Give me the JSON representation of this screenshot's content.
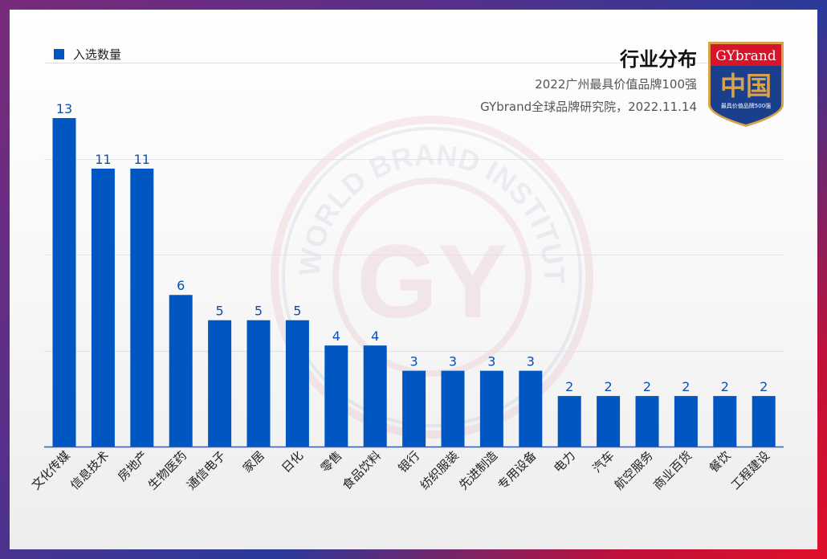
{
  "chart_data": {
    "type": "bar",
    "title": "行业分布",
    "subtitle": [
      "2022广州最具价值品牌100强",
      "GYbrand全球品牌研究院，2022.11.14"
    ],
    "legend": {
      "position": "top-left",
      "entries": [
        "入选数量"
      ]
    },
    "categories": [
      "文化传媒",
      "信息技术",
      "房地产",
      "生物医药",
      "通信电子",
      "家居",
      "日化",
      "零售",
      "食品饮料",
      "银行",
      "纺织服装",
      "先进制造",
      "专用设备",
      "电力",
      "汽车",
      "航空服务",
      "商业百货",
      "餐饮",
      "工程建设"
    ],
    "series": [
      {
        "name": "入选数量",
        "values": [
          13,
          11,
          11,
          6,
          5,
          5,
          5,
          4,
          4,
          3,
          3,
          3,
          3,
          2,
          2,
          2,
          2,
          2,
          2
        ],
        "color": "#0057c2"
      }
    ],
    "xlabel": "",
    "ylabel": "",
    "grid": true,
    "data_labels": true
  },
  "logo": {
    "top_text": "GYbrand",
    "main_text": "中国",
    "bottom_text": "最具价值品牌500强",
    "colors": {
      "red": "#d8142a",
      "blue": "#1a3f8c",
      "gold": "#d8a24a"
    }
  },
  "watermark": {
    "ring_text": "WORLD BRAND INSTITUTE",
    "center_text": "GY"
  }
}
